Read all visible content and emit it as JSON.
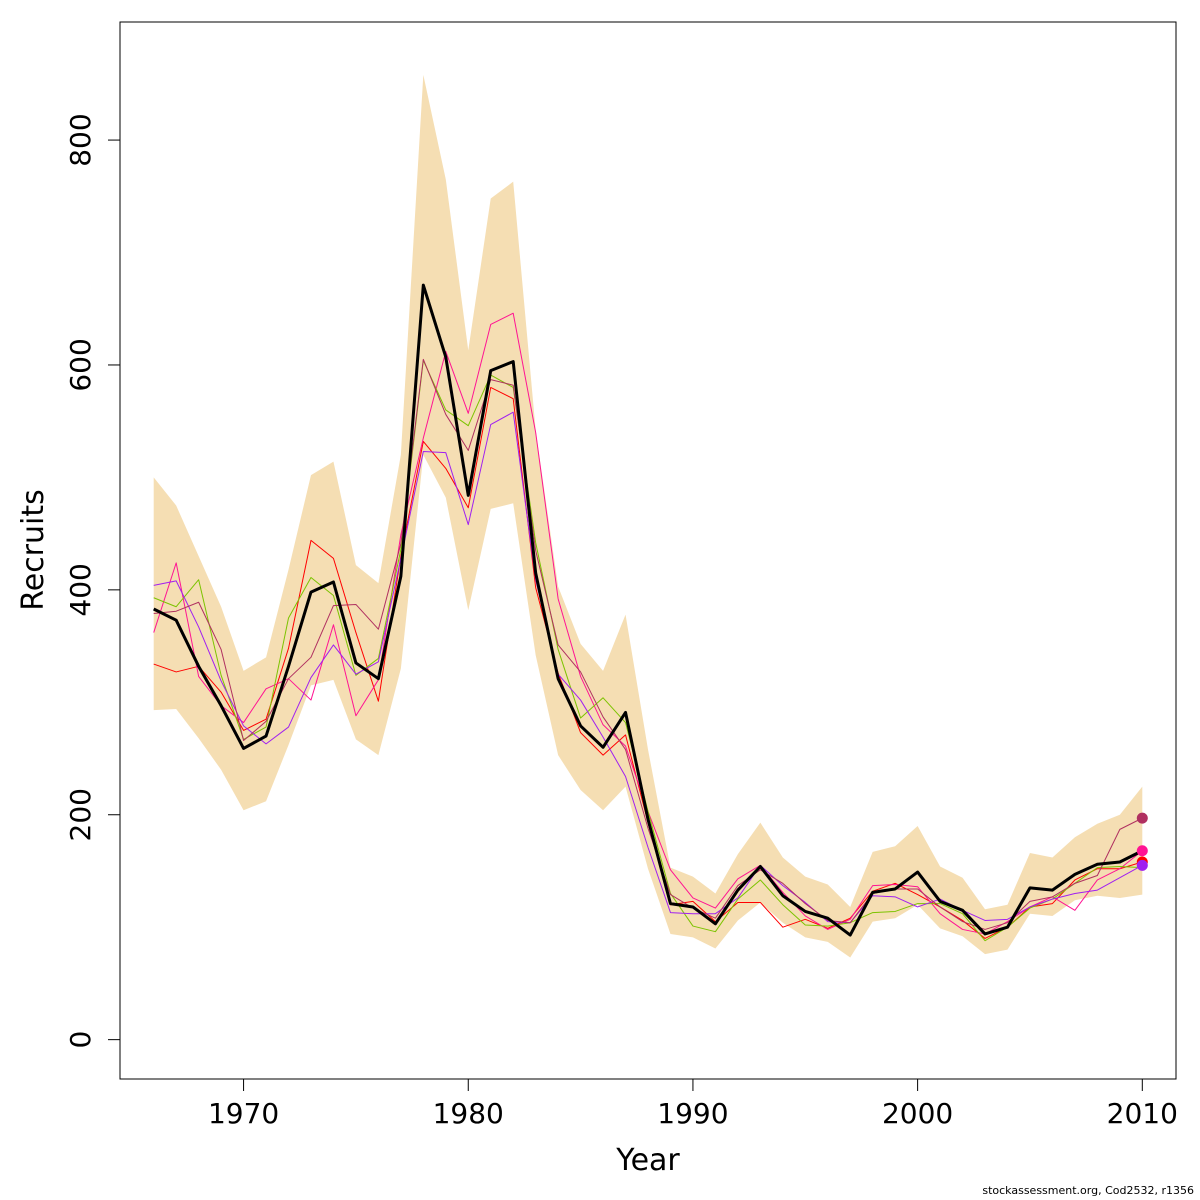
{
  "chart_data": {
    "type": "line",
    "xlabel": "Year",
    "ylabel": "Recruits",
    "xlim": [
      1964.5,
      2011.5
    ],
    "ylim": [
      -35,
      905
    ],
    "x_ticks": [
      1970,
      1980,
      1990,
      2000,
      2010
    ],
    "y_ticks": [
      0,
      200,
      400,
      600,
      800
    ],
    "x": [
      1966,
      1967,
      1968,
      1969,
      1970,
      1971,
      1972,
      1973,
      1974,
      1975,
      1976,
      1977,
      1978,
      1979,
      1980,
      1981,
      1982,
      1983,
      1984,
      1985,
      1986,
      1987,
      1988,
      1989,
      1990,
      1991,
      1992,
      1993,
      1994,
      1995,
      1996,
      1997,
      1998,
      1999,
      2000,
      2001,
      2002,
      2003,
      2004,
      2005,
      2006,
      2007,
      2008,
      2009,
      2010
    ],
    "band": {
      "color": "#f5deb3",
      "upper": [
        500,
        475,
        430,
        385,
        328,
        340,
        418,
        502,
        514,
        422,
        406,
        520,
        858,
        765,
        613,
        748,
        763,
        542,
        403,
        352,
        328,
        378,
        258,
        153,
        145,
        130,
        165,
        193,
        162,
        145,
        138,
        118,
        167,
        172,
        190,
        154,
        144,
        116,
        120,
        166,
        162,
        180,
        192,
        200,
        225
      ],
      "lower": [
        293,
        294,
        268,
        240,
        204,
        212,
        262,
        315,
        320,
        267,
        253,
        330,
        520,
        482,
        382,
        472,
        477,
        342,
        253,
        222,
        204,
        225,
        152,
        94,
        91,
        81,
        106,
        122,
        104,
        91,
        87,
        73,
        105,
        108,
        120,
        99,
        92,
        76,
        80,
        112,
        110,
        124,
        128,
        126,
        129
      ]
    },
    "series": [
      {
        "color": "#000000",
        "width": 3,
        "values": [
          383,
          373,
          332,
          297,
          259,
          270,
          332,
          398,
          407,
          335,
          321,
          412,
          671,
          607,
          484,
          595,
          603,
          415,
          321,
          279,
          260,
          291,
          196,
          121,
          118,
          103,
          133,
          154,
          128,
          114,
          108,
          93,
          131,
          134,
          149,
          123,
          115,
          94,
          100,
          135,
          133,
          147,
          156,
          158,
          168
        ]
      },
      {
        "color": "#ff0000",
        "width": 1,
        "values": [
          334,
          327,
          332,
          309,
          275,
          285,
          348,
          444,
          428,
          362,
          301,
          430,
          532,
          508,
          473,
          580,
          570,
          402,
          326,
          273,
          253,
          271,
          193,
          120,
          123,
          105,
          122,
          122,
          100,
          107,
          99,
          108,
          132,
          139,
          129,
          118,
          106,
          90,
          100,
          118,
          121,
          142,
          152,
          152,
          158
        ]
      },
      {
        "color": "#ff1493",
        "width": 1,
        "values": [
          362,
          424,
          323,
          297,
          282,
          312,
          321,
          302,
          369,
          288,
          320,
          449,
          535,
          612,
          557,
          636,
          646,
          540,
          392,
          323,
          280,
          261,
          203,
          151,
          126,
          117,
          143,
          155,
          131,
          110,
          98,
          107,
          137,
          138,
          136,
          112,
          98,
          94,
          105,
          118,
          127,
          115,
          142,
          152,
          168
        ]
      },
      {
        "color": "#7cc300",
        "width": 1,
        "values": [
          393,
          385,
          409,
          324,
          267,
          278,
          375,
          411,
          395,
          324,
          339,
          436,
          604,
          560,
          546,
          591,
          580,
          442,
          347,
          286,
          304,
          282,
          203,
          130,
          101,
          96,
          125,
          142,
          120,
          102,
          101,
          104,
          113,
          114,
          121,
          121,
          112,
          88,
          100,
          117,
          125,
          139,
          153,
          154,
          153
        ]
      },
      {
        "color": "#a020f0",
        "width": 1,
        "values": [
          404,
          408,
          367,
          319,
          279,
          263,
          278,
          322,
          351,
          325,
          336,
          428,
          523,
          522,
          458,
          547,
          558,
          409,
          325,
          302,
          269,
          234,
          171,
          113,
          112,
          112,
          126,
          155,
          137,
          122,
          105,
          104,
          128,
          127,
          118,
          125,
          115,
          106,
          107,
          118,
          125,
          130,
          133,
          144,
          155
        ]
      },
      {
        "color": "#b03060",
        "width": 1,
        "values": [
          379,
          381,
          389,
          347,
          266,
          283,
          321,
          340,
          386,
          387,
          365,
          441,
          605,
          556,
          524,
          587,
          582,
          435,
          351,
          327,
          287,
          258,
          188,
          129,
          117,
          108,
          137,
          151,
          139,
          121,
          106,
          104,
          130,
          134,
          134,
          118,
          105,
          98,
          104,
          123,
          127,
          139,
          146,
          187,
          197
        ]
      }
    ],
    "end_points": [
      {
        "x": 2010,
        "y": 197,
        "color": "#b03060"
      },
      {
        "x": 2010,
        "y": 168,
        "color": "#ff1493"
      },
      {
        "x": 2010,
        "y": 158,
        "color": "#ff0000"
      },
      {
        "x": 2010,
        "y": 155,
        "color": "#a020f0"
      }
    ],
    "grid": false,
    "legend": "none"
  },
  "footer": "stockassessment.org, Cod2532, r1356"
}
